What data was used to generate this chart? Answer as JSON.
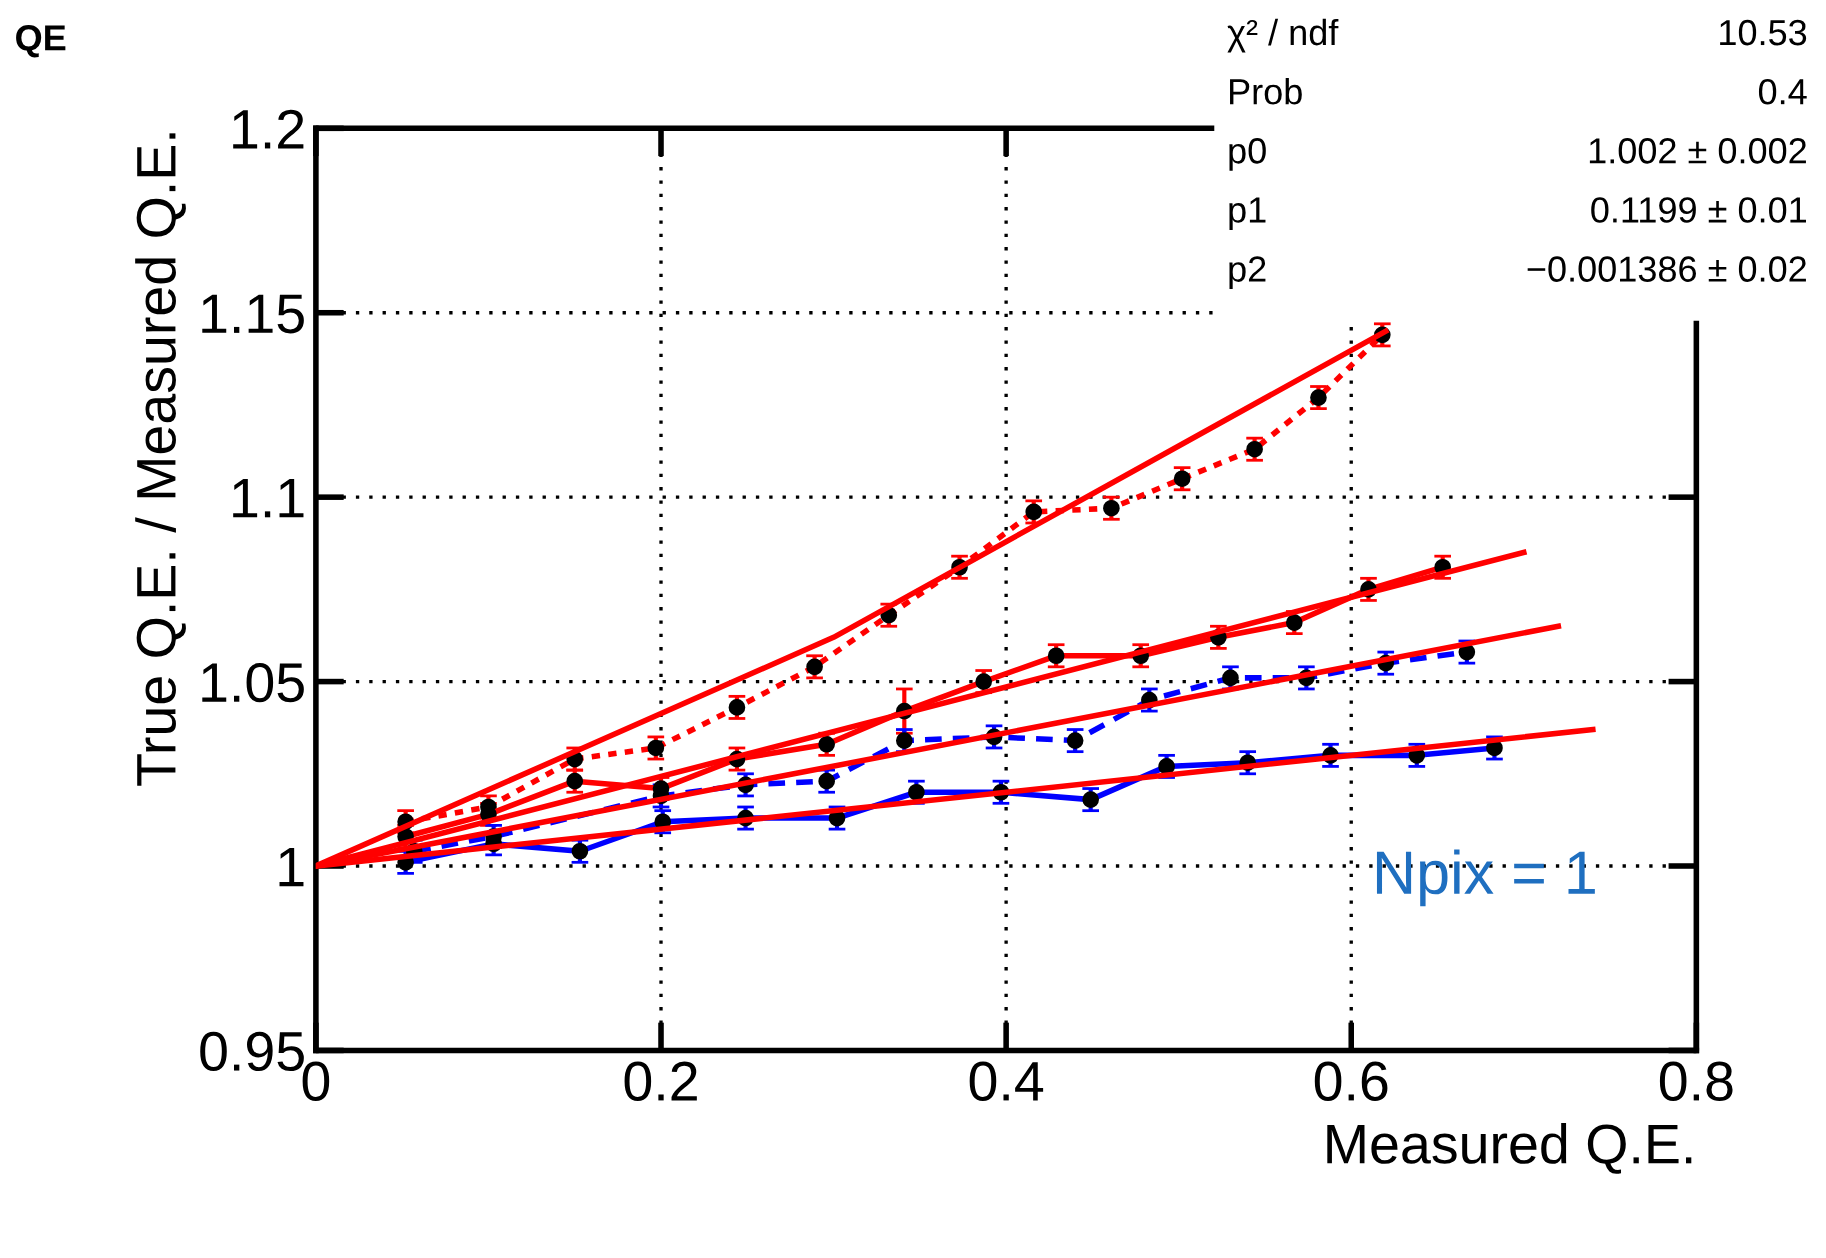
{
  "chart_data": {
    "type": "line",
    "title": "QE",
    "xlabel": "Measured Q.E.",
    "ylabel": "True Q.E. / Measured Q.E.",
    "xlim": [
      0,
      0.8
    ],
    "xticks": [
      0,
      0.2,
      0.4,
      0.6,
      0.8
    ],
    "ylim": [
      0.95,
      1.2
    ],
    "yticks": [
      0.95,
      1,
      1.05,
      1.1,
      1.15,
      1.2
    ],
    "grid": true,
    "marker": "circle",
    "series": [
      {
        "color": "#ff0000",
        "line_style": "dotted",
        "x": [
          0.052,
          0.1,
          0.15,
          0.197,
          0.244,
          0.289,
          0.332,
          0.373,
          0.416,
          0.461,
          0.502,
          0.544,
          0.581,
          0.618
        ],
        "values": [
          1.012,
          1.016,
          1.029,
          1.032,
          1.043,
          1.054,
          1.068,
          1.081,
          1.096,
          1.097,
          1.105,
          1.113,
          1.127,
          1.144
        ],
        "errors": [
          0.003,
          0.003,
          0.003,
          0.003,
          0.003,
          0.003,
          0.003,
          0.003,
          0.003,
          0.003,
          0.003,
          0.003,
          0.003,
          0.003
        ]
      },
      {
        "color": "#ff0000",
        "line_style": "solid",
        "x": [
          0.052,
          0.1,
          0.15,
          0.2,
          0.244,
          0.296,
          0.341,
          0.387,
          0.429,
          0.478,
          0.523,
          0.567,
          0.61,
          0.653
        ],
        "values": [
          1.008,
          1.014,
          1.023,
          1.021,
          1.029,
          1.033,
          1.042,
          1.05,
          1.057,
          1.057,
          1.062,
          1.066,
          1.075,
          1.081
        ],
        "errors": [
          0.003,
          0.003,
          0.003,
          0.003,
          0.003,
          0.003,
          0.006,
          0.003,
          0.003,
          0.003,
          0.003,
          0.003,
          0.003,
          0.003
        ]
      },
      {
        "color": "#0000ff",
        "line_style": "dashed",
        "x": [
          0.057,
          0.103,
          0.2,
          0.249,
          0.296,
          0.341,
          0.393,
          0.44,
          0.483,
          0.53,
          0.574,
          0.62,
          0.667
        ],
        "values": [
          1.004,
          1.008,
          1.019,
          1.022,
          1.023,
          1.034,
          1.035,
          1.034,
          1.045,
          1.051,
          1.051,
          1.055,
          1.058
        ],
        "errors": [
          0.003,
          0.003,
          0.003,
          0.003,
          0.003,
          0.003,
          0.003,
          0.003,
          0.003,
          0.003,
          0.003,
          0.003,
          0.003
        ]
      },
      {
        "color": "#0000ff",
        "line_style": "solid",
        "x": [
          0.052,
          0.103,
          0.153,
          0.201,
          0.249,
          0.302,
          0.348,
          0.397,
          0.449,
          0.493,
          0.54,
          0.588,
          0.638,
          0.683
        ],
        "values": [
          1.001,
          1.006,
          1.004,
          1.012,
          1.013,
          1.013,
          1.02,
          1.02,
          1.018,
          1.027,
          1.028,
          1.03,
          1.03,
          1.032
        ],
        "errors": [
          0.003,
          0.003,
          0.003,
          0.003,
          0.003,
          0.003,
          0.003,
          0.003,
          0.003,
          0.003,
          0.003,
          0.003,
          0.003,
          0.003
        ]
      },
      {
        "color": "#ff0000",
        "line_style": "solid",
        "marker": "none",
        "x": [
          0,
          0.3,
          0.62
        ],
        "values": [
          1.0,
          1.062,
          1.145
        ]
      },
      {
        "color": "#ff0000",
        "line_style": "solid",
        "marker": "none",
        "x": [
          0,
          0.7
        ],
        "values": [
          1.0,
          1.085
        ]
      },
      {
        "color": "#ff0000",
        "line_style": "solid",
        "marker": "none",
        "x": [
          0,
          0.72
        ],
        "values": [
          1.0,
          1.065
        ]
      },
      {
        "color": "#ff0000",
        "line_style": "solid",
        "marker": "none",
        "x": [
          0,
          0.74
        ],
        "values": [
          1.0,
          1.037
        ]
      }
    ],
    "annotations": [
      "Npix = 1",
      "χ² / ndf",
      "10.53",
      "Prob",
      "0.4",
      "p0",
      "1.002 ± 0.002",
      "p1",
      "0.1199 ± 0.01",
      "p2",
      "−0.001386 ± 0.02"
    ]
  }
}
